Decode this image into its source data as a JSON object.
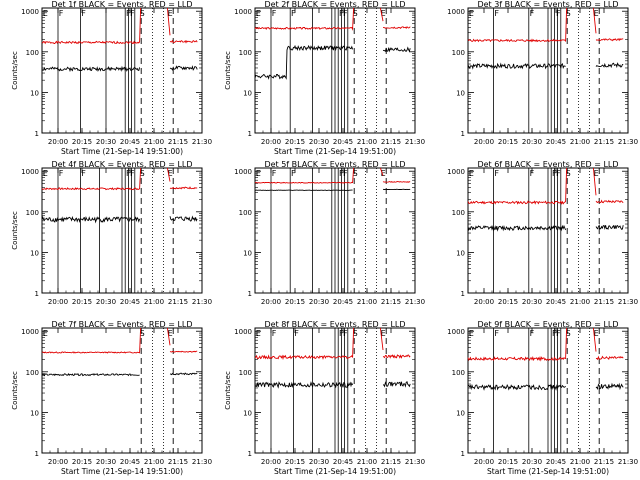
{
  "chart_data": [
    {
      "type": "line",
      "title": "Det 1f BLACK = Events, RED = LLD",
      "xlabel": "Start Time (21-Sep-14 19:51:00)",
      "ylabel": "Counts/sec",
      "ylog": true,
      "ylim": [
        1,
        1200
      ],
      "xlim": [
        1190,
        1290
      ],
      "xticks": [
        1200,
        1215,
        1230,
        1245,
        1260,
        1275,
        1290
      ],
      "xticklabels": [
        "20:00",
        "20:15",
        "20:30",
        "20:45",
        "21:00",
        "21:15",
        "21:30"
      ],
      "yticks": [
        1,
        10,
        100,
        1000
      ],
      "yticklabels": [
        "1",
        "10",
        "100",
        "1000"
      ],
      "series": [
        {
          "color": "#e00000",
          "base": 170,
          "ripple": 0.06,
          "seed": 1,
          "sat": true
        },
        {
          "color": "#000000",
          "base": 38,
          "ripple": 0.1,
          "seed": 2,
          "sat": false
        }
      ],
      "markers": {
        "solid": [
          1200,
          1214,
          1230,
          1242,
          1244,
          1246,
          1248
        ],
        "letters": [
          {
            "x": 1190.5,
            "t": "E"
          },
          {
            "x": 1200.5,
            "t": "F"
          },
          {
            "x": 1214.5,
            "t": "F"
          },
          {
            "x": 1242.5,
            "t": "F"
          },
          {
            "x": 1245,
            "t": "F"
          },
          {
            "x": 1251,
            "t": "S"
          },
          {
            "x": 1268.5,
            "t": "E"
          }
        ]
      }
    },
    {
      "type": "line",
      "title": "Det 2f BLACK = Events, RED = LLD",
      "xlabel": "Start Time (21-Sep-14 19:51:00)",
      "ylabel": "Counts/sec",
      "ylog": true,
      "ylim": [
        1,
        1200
      ],
      "xlim": [
        1190,
        1290
      ],
      "xticks": [
        1200,
        1215,
        1230,
        1245,
        1260,
        1275,
        1290
      ],
      "xticklabels": [
        "20:00",
        "20:15",
        "20:30",
        "20:45",
        "21:00",
        "21:15",
        "21:30"
      ],
      "yticks": [
        1,
        10,
        100,
        1000
      ],
      "yticklabels": [
        "1",
        "10",
        "100",
        "1000"
      ],
      "series": [
        {
          "color": "#e00000",
          "base": 380,
          "ripple": 0.05,
          "seed": 3,
          "sat": true
        },
        {
          "color": "#000000",
          "base": 25,
          "ripple": 0.12,
          "seed": 4,
          "sat": false,
          "step": {
            "x": 1210,
            "mult": 5
          }
        }
      ],
      "markers": {
        "solid": [
          1200,
          1212,
          1226,
          1238,
          1240,
          1242,
          1244,
          1246,
          1248
        ],
        "letters": [
          {
            "x": 1190.5,
            "t": "E"
          },
          {
            "x": 1200.5,
            "t": "F"
          },
          {
            "x": 1212.5,
            "t": "F"
          },
          {
            "x": 1242.5,
            "t": "F"
          },
          {
            "x": 1245,
            "t": "F"
          },
          {
            "x": 1251,
            "t": "S"
          },
          {
            "x": 1268.5,
            "t": "E"
          }
        ]
      }
    },
    {
      "type": "line",
      "title": "Det 3f BLACK = Events, RED = LLD",
      "xlabel": "",
      "ylabel": "",
      "ylog": true,
      "ylim": [
        1,
        1200
      ],
      "xlim": [
        1190,
        1290
      ],
      "xticks": [
        1200,
        1215,
        1230,
        1245,
        1260,
        1275,
        1290
      ],
      "xticklabels": [
        "20:00",
        "20:15",
        "20:30",
        "20:45",
        "21:00",
        "21:15",
        "21:30"
      ],
      "yticks": [
        1,
        10,
        100,
        1000
      ],
      "yticklabels": [
        "1",
        "10",
        "100",
        "1000"
      ],
      "series": [
        {
          "color": "#e00000",
          "base": 190,
          "ripple": 0.06,
          "seed": 5,
          "sat": true
        },
        {
          "color": "#000000",
          "base": 45,
          "ripple": 0.12,
          "seed": 6,
          "sat": false
        }
      ],
      "markers": {
        "solid": [
          1206,
          1228,
          1240,
          1242,
          1244,
          1246,
          1248
        ],
        "letters": [
          {
            "x": 1190.5,
            "t": "E"
          },
          {
            "x": 1206.5,
            "t": "F"
          },
          {
            "x": 1228.5,
            "t": "F"
          },
          {
            "x": 1245,
            "t": "F"
          },
          {
            "x": 1251,
            "t": "S"
          },
          {
            "x": 1268.5,
            "t": "E"
          }
        ]
      }
    },
    {
      "type": "line",
      "title": "Det 4f BLACK = Events, RED = LLD",
      "xlabel": "",
      "ylabel": "Counts/sec",
      "ylog": true,
      "ylim": [
        1,
        1200
      ],
      "xlim": [
        1190,
        1290
      ],
      "xticks": [
        1200,
        1215,
        1230,
        1245,
        1260,
        1275,
        1290
      ],
      "xticklabels": [
        "20:00",
        "20:15",
        "20:30",
        "20:45",
        "21:00",
        "21:15",
        "21:30"
      ],
      "yticks": [
        1,
        10,
        100,
        1000
      ],
      "yticklabels": [
        "1",
        "10",
        "100",
        "1000"
      ],
      "series": [
        {
          "color": "#e00000",
          "base": 370,
          "ripple": 0.05,
          "seed": 7,
          "sat": true
        },
        {
          "color": "#000000",
          "base": 65,
          "ripple": 0.14,
          "seed": 8,
          "sat": false
        }
      ],
      "markers": {
        "solid": [
          1200,
          1214,
          1226,
          1240,
          1242,
          1244,
          1246,
          1248
        ],
        "letters": [
          {
            "x": 1190.5,
            "t": "E"
          },
          {
            "x": 1200.5,
            "t": "F"
          },
          {
            "x": 1214.5,
            "t": "F"
          },
          {
            "x": 1242.5,
            "t": "F"
          },
          {
            "x": 1245,
            "t": "F"
          },
          {
            "x": 1251,
            "t": "S"
          },
          {
            "x": 1268.5,
            "t": "E"
          }
        ]
      }
    },
    {
      "type": "line",
      "title": "Det 5f BLACK = Events, RED = LLD",
      "xlabel": "",
      "ylabel": "",
      "ylog": true,
      "ylim": [
        1,
        1200
      ],
      "xlim": [
        1190,
        1290
      ],
      "xticks": [
        1200,
        1215,
        1230,
        1245,
        1260,
        1275,
        1290
      ],
      "xticklabels": [
        "20:00",
        "20:15",
        "20:30",
        "20:45",
        "21:00",
        "21:15",
        "21:30"
      ],
      "yticks": [
        1,
        10,
        100,
        1000
      ],
      "yticklabels": [
        "1",
        "10",
        "100",
        "1000"
      ],
      "series": [
        {
          "color": "#e00000",
          "base": 520,
          "ripple": 0.02,
          "seed": 9,
          "sat": true
        },
        {
          "color": "#000000",
          "base": 340,
          "ripple": 0.01,
          "seed": 10,
          "sat": false
        }
      ],
      "markers": {
        "solid": [
          1200,
          1212,
          1226,
          1238,
          1240,
          1242,
          1244,
          1246,
          1248
        ],
        "letters": [
          {
            "x": 1190.5,
            "t": "E"
          },
          {
            "x": 1200.5,
            "t": "F"
          },
          {
            "x": 1212.5,
            "t": "F"
          },
          {
            "x": 1242.5,
            "t": "F"
          },
          {
            "x": 1245,
            "t": "F"
          },
          {
            "x": 1251,
            "t": "S"
          },
          {
            "x": 1268.5,
            "t": "E"
          }
        ]
      }
    },
    {
      "type": "line",
      "title": "Det 6f BLACK = Events, RED = LLD",
      "xlabel": "",
      "ylabel": "",
      "ylog": true,
      "ylim": [
        1,
        1200
      ],
      "xlim": [
        1190,
        1290
      ],
      "xticks": [
        1200,
        1215,
        1230,
        1245,
        1260,
        1275,
        1290
      ],
      "xticklabels": [
        "20:00",
        "20:15",
        "20:30",
        "20:45",
        "21:00",
        "21:15",
        "21:30"
      ],
      "yticks": [
        1,
        10,
        100,
        1000
      ],
      "yticklabels": [
        "1",
        "10",
        "100",
        "1000"
      ],
      "series": [
        {
          "color": "#e00000",
          "base": 170,
          "ripple": 0.07,
          "seed": 11,
          "sat": true
        },
        {
          "color": "#000000",
          "base": 40,
          "ripple": 0.12,
          "seed": 12,
          "sat": false
        }
      ],
      "markers": {
        "solid": [
          1206,
          1228,
          1240,
          1242,
          1244,
          1246,
          1248
        ],
        "letters": [
          {
            "x": 1190.5,
            "t": "E"
          },
          {
            "x": 1206.5,
            "t": "F"
          },
          {
            "x": 1228.5,
            "t": "F"
          },
          {
            "x": 1242.5,
            "t": "F"
          },
          {
            "x": 1245,
            "t": "F"
          },
          {
            "x": 1251,
            "t": "S"
          },
          {
            "x": 1268.5,
            "t": "E"
          }
        ]
      }
    },
    {
      "type": "line",
      "title": "Det 7f BLACK = Events, RED = LLD",
      "xlabel": "Start Time (21-Sep-14 19:51:00)",
      "ylabel": "Counts/sec",
      "ylog": true,
      "ylim": [
        1,
        1200
      ],
      "xlim": [
        1190,
        1290
      ],
      "xticks": [
        1200,
        1215,
        1230,
        1245,
        1260,
        1275,
        1290
      ],
      "xticklabels": [
        "20:00",
        "20:15",
        "20:30",
        "20:45",
        "21:00",
        "21:15",
        "21:30"
      ],
      "yticks": [
        1,
        10,
        100,
        1000
      ],
      "yticklabels": [
        "1",
        "10",
        "100",
        "1000"
      ],
      "series": [
        {
          "color": "#e00000",
          "base": 300,
          "ripple": 0.03,
          "seed": 13,
          "sat": true
        },
        {
          "color": "#000000",
          "base": 85,
          "ripple": 0.05,
          "seed": 14,
          "sat": false
        }
      ],
      "markers": {
        "solid": [],
        "letters": [
          {
            "x": 1190.5,
            "t": "E"
          },
          {
            "x": 1251,
            "t": "S"
          },
          {
            "x": 1268.5,
            "t": "E"
          }
        ]
      }
    },
    {
      "type": "line",
      "title": "Det 8f BLACK = Events, RED = LLD",
      "xlabel": "Start Time (21-Sep-14 19:51:00)",
      "ylabel": "Counts/sec",
      "ylog": true,
      "ylim": [
        1,
        1200
      ],
      "xlim": [
        1190,
        1290
      ],
      "xticks": [
        1200,
        1215,
        1230,
        1245,
        1260,
        1275,
        1290
      ],
      "xticklabels": [
        "20:00",
        "20:15",
        "20:30",
        "20:45",
        "21:00",
        "21:15",
        "21:30"
      ],
      "yticks": [
        1,
        10,
        100,
        1000
      ],
      "yticklabels": [
        "1",
        "10",
        "100",
        "1000"
      ],
      "series": [
        {
          "color": "#e00000",
          "base": 230,
          "ripple": 0.08,
          "seed": 15,
          "sat": true
        },
        {
          "color": "#000000",
          "base": 48,
          "ripple": 0.14,
          "seed": 16,
          "sat": false
        }
      ],
      "markers": {
        "solid": [
          1200,
          1214,
          1226,
          1240,
          1242,
          1244,
          1246,
          1248
        ],
        "letters": [
          {
            "x": 1190.5,
            "t": "E"
          },
          {
            "x": 1200.5,
            "t": "F"
          },
          {
            "x": 1214.5,
            "t": "F"
          },
          {
            "x": 1242.5,
            "t": "F"
          },
          {
            "x": 1245,
            "t": "F"
          },
          {
            "x": 1251,
            "t": "S"
          },
          {
            "x": 1268.5,
            "t": "E"
          }
        ]
      }
    },
    {
      "type": "line",
      "title": "Det 9f BLACK = Events, RED = LLD",
      "xlabel": "Start Time (21-Sep-14 19:51:00)",
      "ylabel": "",
      "ylog": true,
      "ylim": [
        1,
        1200
      ],
      "xlim": [
        1190,
        1290
      ],
      "xticks": [
        1200,
        1215,
        1230,
        1245,
        1260,
        1275,
        1290
      ],
      "xticklabels": [
        "20:00",
        "20:15",
        "20:30",
        "20:45",
        "21:00",
        "21:15",
        "21:30"
      ],
      "yticks": [
        1,
        10,
        100,
        1000
      ],
      "yticklabels": [
        "1",
        "10",
        "100",
        "1000"
      ],
      "series": [
        {
          "color": "#e00000",
          "base": 210,
          "ripple": 0.08,
          "seed": 17,
          "sat": true
        },
        {
          "color": "#000000",
          "base": 42,
          "ripple": 0.13,
          "seed": 18,
          "sat": false
        }
      ],
      "markers": {
        "solid": [
          1206,
          1228,
          1240,
          1242,
          1244,
          1246,
          1248
        ],
        "letters": [
          {
            "x": 1190.5,
            "t": "E"
          },
          {
            "x": 1206.5,
            "t": "F"
          },
          {
            "x": 1228.5,
            "t": "F"
          },
          {
            "x": 1242.5,
            "t": "F"
          },
          {
            "x": 1245,
            "t": "F"
          },
          {
            "x": 1251,
            "t": "S"
          },
          {
            "x": 1268.5,
            "t": "E"
          }
        ]
      }
    }
  ],
  "shared": {
    "dotted": [
      1259,
      1266
    ],
    "dashed": [
      1252,
      1272
    ],
    "gap": [
      1251,
      1269
    ]
  }
}
